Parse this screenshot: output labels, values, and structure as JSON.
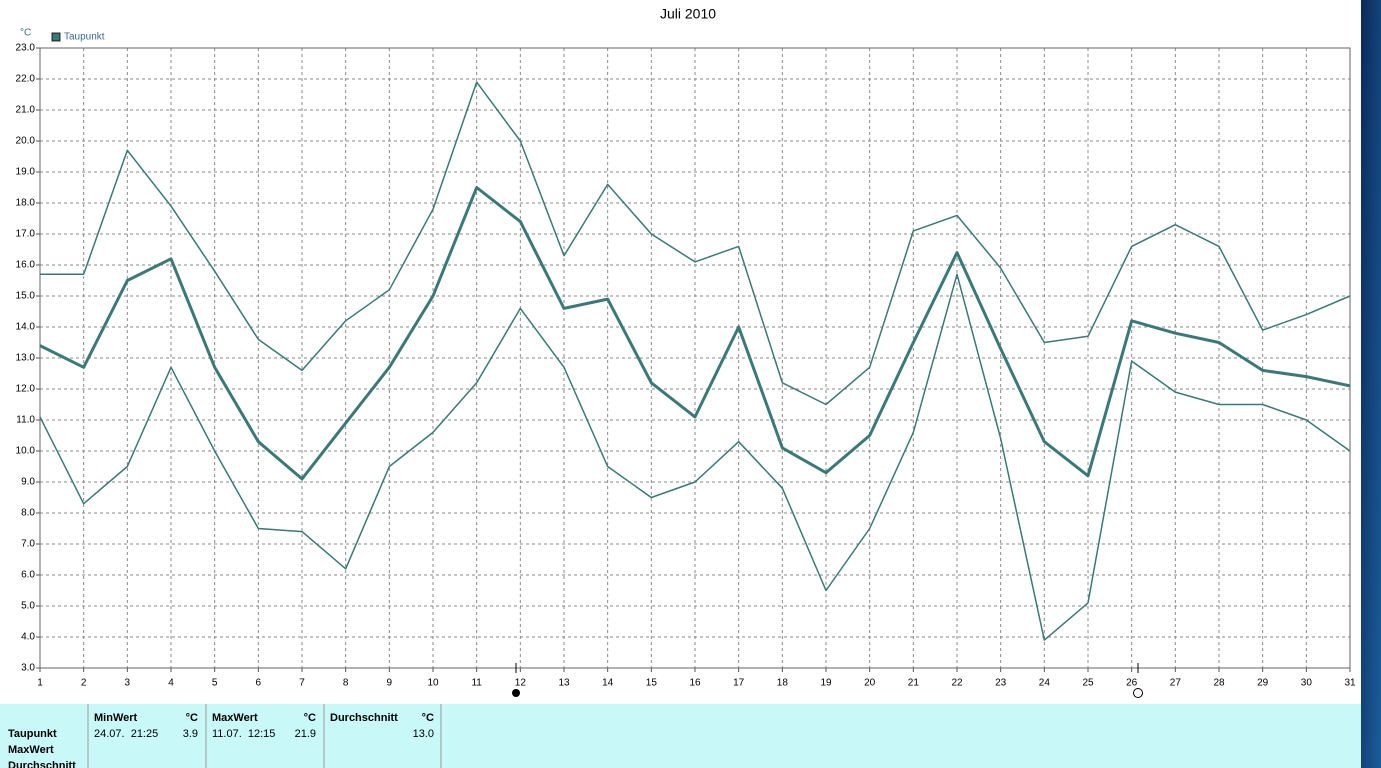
{
  "chart_data": {
    "type": "line",
    "title": "Juli 2010",
    "y_unit": "°C",
    "legend": "upper left",
    "grid": true,
    "x": [
      1,
      2,
      3,
      4,
      5,
      6,
      7,
      8,
      9,
      10,
      11,
      12,
      13,
      14,
      15,
      16,
      17,
      18,
      19,
      20,
      21,
      22,
      23,
      24,
      25,
      26,
      27,
      28,
      29,
      30,
      31
    ],
    "xlim": [
      1,
      31
    ],
    "ylim": [
      3,
      23
    ],
    "yticks": [
      {
        "value": 3,
        "label": "3.0"
      },
      {
        "value": 4,
        "label": "4.0"
      },
      {
        "value": 5,
        "label": "5.0"
      },
      {
        "value": 6,
        "label": "6.0"
      },
      {
        "value": 7,
        "label": "7.0"
      },
      {
        "value": 8,
        "label": "8.0"
      },
      {
        "value": 9,
        "label": "9.0"
      },
      {
        "value": 10,
        "label": "10.0"
      },
      {
        "value": 11,
        "label": "11.0"
      },
      {
        "value": 12,
        "label": "12.0"
      },
      {
        "value": 13,
        "label": "13.0"
      },
      {
        "value": 14,
        "label": "14.0"
      },
      {
        "value": 15,
        "label": "15.0"
      },
      {
        "value": 16,
        "label": "16.0"
      },
      {
        "value": 17,
        "label": "17.0"
      },
      {
        "value": 18,
        "label": "18.0"
      },
      {
        "value": 19,
        "label": "19.0"
      },
      {
        "value": 20,
        "label": "20.0"
      },
      {
        "value": 21,
        "label": "21.0"
      },
      {
        "value": 22,
        "label": "22.0"
      },
      {
        "value": 23,
        "label": "23.0"
      }
    ],
    "series": [
      {
        "name": "Taupunkt",
        "color": "#3b7878",
        "line_width": 3,
        "values": [
          13.4,
          12.7,
          15.5,
          16.2,
          12.7,
          10.3,
          9.1,
          10.9,
          12.7,
          15.0,
          18.5,
          17.4,
          14.6,
          14.9,
          12.2,
          11.1,
          14.0,
          10.1,
          9.3,
          10.5,
          13.5,
          16.4,
          13.3,
          10.3,
          9.2,
          14.2,
          13.8,
          13.5,
          12.6,
          12.4,
          12.1
        ]
      },
      {
        "color": "#3b7878",
        "line_width": 1.5,
        "values": [
          15.7,
          15.7,
          19.7,
          17.9,
          15.8,
          13.6,
          12.6,
          14.2,
          15.2,
          17.8,
          21.9,
          20.0,
          16.3,
          18.6,
          17.0,
          16.1,
          16.6,
          12.2,
          11.5,
          12.7,
          17.1,
          17.6,
          15.9,
          13.5,
          13.7,
          16.6,
          17.3,
          16.6,
          13.9,
          14.4,
          15.0
        ]
      },
      {
        "color": "#3b7878",
        "line_width": 1.5,
        "values": [
          11.1,
          8.3,
          9.5,
          12.7,
          10.0,
          7.5,
          7.4,
          6.2,
          9.5,
          10.6,
          12.2,
          14.6,
          12.7,
          9.5,
          8.5,
          9.0,
          10.3,
          8.8,
          5.5,
          7.5,
          10.6,
          15.7,
          10.4,
          3.9,
          5.1,
          12.9,
          11.9,
          11.5,
          11.5,
          11.0,
          10.0
        ]
      }
    ]
  },
  "stats_table": {
    "columns": [
      {
        "name": "MinWert",
        "unit": "°C"
      },
      {
        "name": "MaxWert",
        "unit": "°C"
      },
      {
        "name": "Durchschnitt",
        "unit": "°C"
      }
    ],
    "row_labels": [
      "Taupunkt",
      "MaxWert",
      "Durchschnitt"
    ],
    "rows": [
      [
        {
          "time": "24.07.  21:25",
          "value": "3.9"
        },
        {
          "time": "11.07.  12:15",
          "value": "21.9"
        },
        {
          "value": "13.0"
        }
      ]
    ]
  }
}
